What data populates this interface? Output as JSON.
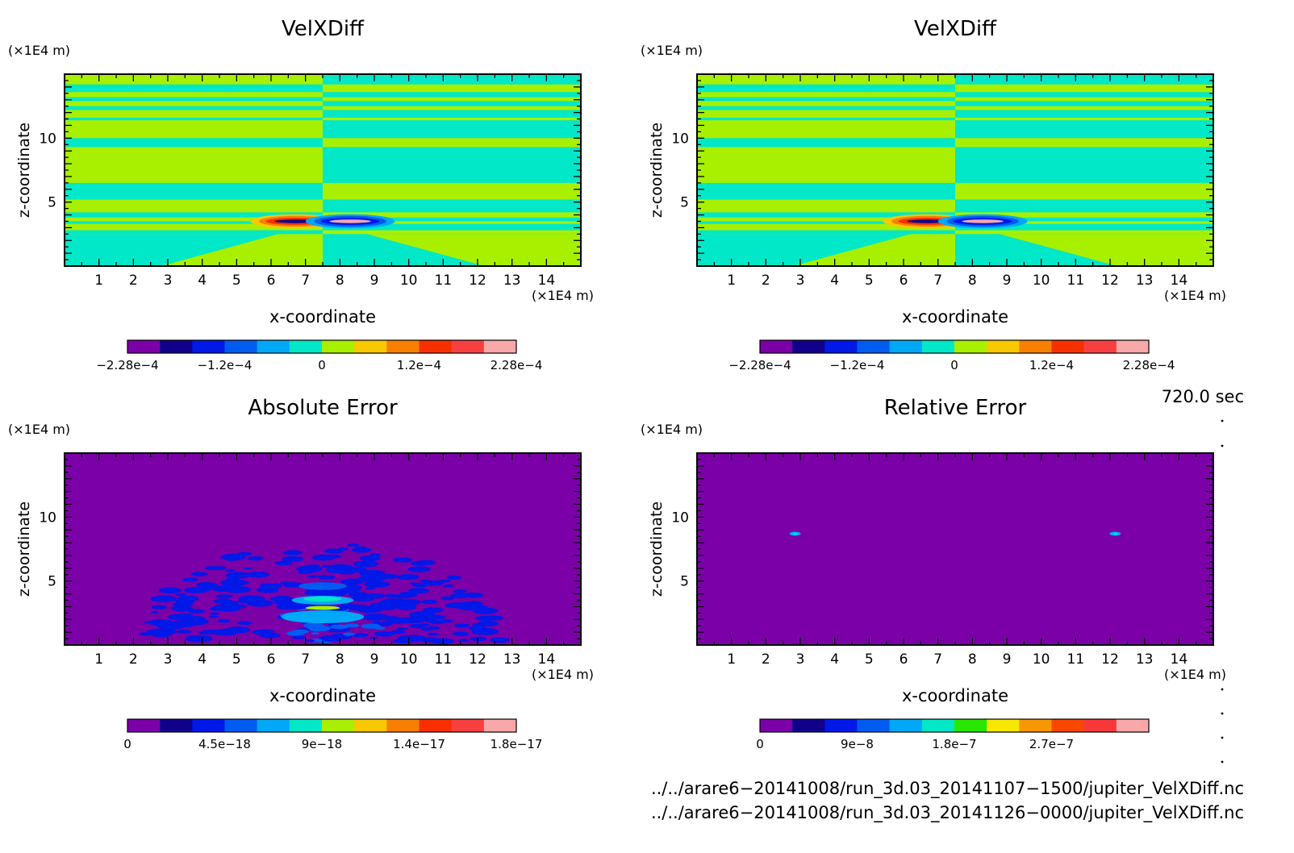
{
  "chart_data": [
    {
      "type": "heatmap",
      "title": "VelXDiff",
      "xlabel": "x-coordinate",
      "ylabel": "z-coordinate",
      "x_unit": "(×1E4 m)",
      "y_unit": "(×1E4 m)",
      "xlim": [
        0,
        15
      ],
      "ylim": [
        0,
        15
      ],
      "x_ticks": [
        1,
        2,
        3,
        4,
        5,
        6,
        7,
        8,
        9,
        10,
        11,
        12,
        13,
        14
      ],
      "y_ticks": [
        5,
        10
      ],
      "colorbar": {
        "colors": [
          "#7b00a8",
          "#10008a",
          "#0018e8",
          "#005cf0",
          "#00a8f8",
          "#00e8c8",
          "#a8f000",
          "#f8c800",
          "#f88000",
          "#f83000",
          "#f84040",
          "#f8a8a8"
        ],
        "labels": [
          "−2.28e−4",
          "−1.2e−4",
          "0",
          "1.2e−4",
          "2.28e−4"
        ],
        "label_positions": [
          0,
          3,
          6,
          9,
          12
        ]
      },
      "field": "velxdiff"
    },
    {
      "type": "heatmap",
      "title": "VelXDiff",
      "xlabel": "x-coordinate",
      "ylabel": "z-coordinate",
      "x_unit": "(×1E4 m)",
      "y_unit": "(×1E4 m)",
      "xlim": [
        0,
        15
      ],
      "ylim": [
        0,
        15
      ],
      "x_ticks": [
        1,
        2,
        3,
        4,
        5,
        6,
        7,
        8,
        9,
        10,
        11,
        12,
        13,
        14
      ],
      "y_ticks": [
        5,
        10
      ],
      "colorbar": {
        "colors": [
          "#7b00a8",
          "#10008a",
          "#0018e8",
          "#005cf0",
          "#00a8f8",
          "#00e8c8",
          "#a8f000",
          "#f8c800",
          "#f88000",
          "#f83000",
          "#f84040",
          "#f8a8a8"
        ],
        "labels": [
          "−2.28e−4",
          "−1.2e−4",
          "0",
          "1.2e−4",
          "2.28e−4"
        ],
        "label_positions": [
          0,
          3,
          6,
          9,
          12
        ]
      },
      "field": "velxdiff"
    },
    {
      "type": "heatmap",
      "title": "Absolute Error",
      "xlabel": "x-coordinate",
      "ylabel": "z-coordinate",
      "x_unit": "(×1E4 m)",
      "y_unit": "(×1E4 m)",
      "xlim": [
        0,
        15
      ],
      "ylim": [
        0,
        15
      ],
      "x_ticks": [
        1,
        2,
        3,
        4,
        5,
        6,
        7,
        8,
        9,
        10,
        11,
        12,
        13,
        14
      ],
      "y_ticks": [
        5,
        10
      ],
      "colorbar": {
        "colors": [
          "#7b00a8",
          "#10008a",
          "#0018e8",
          "#005cf0",
          "#00a8f8",
          "#00e8c8",
          "#a8f000",
          "#f8c800",
          "#f88000",
          "#f83000",
          "#f84040",
          "#f8a8a8"
        ],
        "labels": [
          "0",
          "4.5e−18",
          "9e−18",
          "1.4e−17",
          "1.8e−17"
        ],
        "label_positions": [
          0,
          3,
          6,
          9,
          12
        ]
      },
      "field": "abserror"
    },
    {
      "type": "heatmap",
      "title": "Relative Error",
      "xlabel": "x-coordinate",
      "ylabel": "z-coordinate",
      "x_unit": "(×1E4 m)",
      "y_unit": "(×1E4 m)",
      "xlim": [
        0,
        15
      ],
      "ylim": [
        0,
        15
      ],
      "x_ticks": [
        1,
        2,
        3,
        4,
        5,
        6,
        7,
        8,
        9,
        10,
        11,
        12,
        13,
        14
      ],
      "y_ticks": [
        5,
        10
      ],
      "colorbar": {
        "colors": [
          "#7b00a8",
          "#10008a",
          "#0018e8",
          "#005cf0",
          "#00a8f8",
          "#00e8c8",
          "#28e800",
          "#f8e800",
          "#f89800",
          "#f84800",
          "#f83838",
          "#f8a8a8"
        ],
        "labels": [
          "0",
          "9e−8",
          "1.8e−7",
          "2.7e−7"
        ],
        "label_positions": [
          0,
          3,
          6,
          9
        ]
      },
      "field": "relerror"
    }
  ],
  "time_label": "720.0 sec",
  "file_paths": [
    "../../arare6−20141008/run_3d.03_20141107−1500/jupiter_VelXDiff.nc",
    "../../arare6−20141008/run_3d.03_20141126−0000/jupiter_VelXDiff.nc"
  ]
}
